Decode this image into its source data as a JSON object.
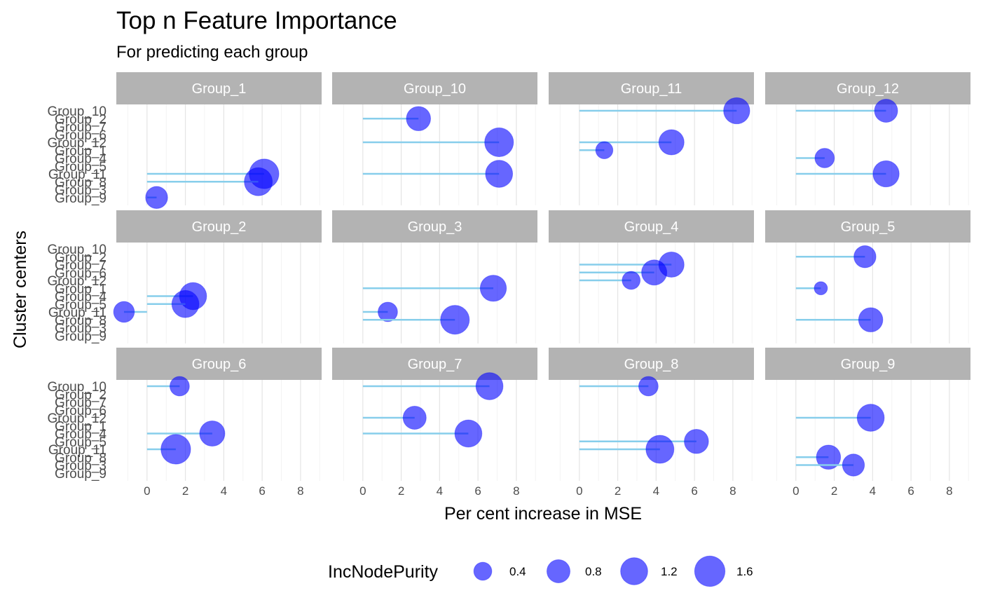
{
  "chart_data": {
    "type": "scatter",
    "title": "Top n Feature Importance",
    "subtitle": "For predicting each group",
    "xlabel": "Per cent increase in MSE",
    "ylabel": "Cluster centers",
    "xlim": [
      -1.6,
      9.1
    ],
    "x_ticks": [
      0,
      2,
      4,
      6,
      8
    ],
    "y_categories": [
      "Group_10",
      "Group_2",
      "Group_7",
      "Group_6",
      "Group_12",
      "Group_1",
      "Group_4",
      "Group_5",
      "Group_11",
      "Group_8",
      "Group_3",
      "Group_9"
    ],
    "grid": true,
    "size_legend": {
      "title": "IncNodePurity",
      "breaks": [
        0.4,
        0.8,
        1.2,
        1.6
      ],
      "labels": [
        "0.4",
        "0.8",
        "1.2",
        "1.6"
      ]
    },
    "colors": {
      "point": "#0000ff",
      "segment": "#87ceeb",
      "strip": "#b3b3b3",
      "grid": "#ebebeb"
    },
    "panels": [
      {
        "name": "Group_1",
        "points": [
          {
            "y": "Group_11",
            "x": 6.1,
            "size": 1.5
          },
          {
            "y": "Group_8",
            "x": 5.8,
            "size": 1.3
          },
          {
            "y": "Group_9",
            "x": 0.5,
            "size": 0.7
          }
        ]
      },
      {
        "name": "Group_10",
        "points": [
          {
            "y": "Group_2",
            "x": 2.9,
            "size": 0.9
          },
          {
            "y": "Group_12",
            "x": 7.1,
            "size": 1.4
          },
          {
            "y": "Group_11",
            "x": 7.1,
            "size": 1.2
          }
        ]
      },
      {
        "name": "Group_11",
        "points": [
          {
            "y": "Group_10",
            "x": 8.2,
            "size": 1.1
          },
          {
            "y": "Group_12",
            "x": 4.8,
            "size": 1.0
          },
          {
            "y": "Group_1",
            "x": 1.3,
            "size": 0.35
          }
        ]
      },
      {
        "name": "Group_12",
        "points": [
          {
            "y": "Group_10",
            "x": 4.7,
            "size": 0.8
          },
          {
            "y": "Group_4",
            "x": 1.5,
            "size": 0.5
          },
          {
            "y": "Group_11",
            "x": 4.7,
            "size": 1.1
          }
        ]
      },
      {
        "name": "Group_2",
        "points": [
          {
            "y": "Group_4",
            "x": 2.4,
            "size": 1.2
          },
          {
            "y": "Group_5",
            "x": 2.0,
            "size": 1.2
          },
          {
            "y": "Group_11",
            "x": -1.2,
            "size": 0.6
          }
        ]
      },
      {
        "name": "Group_3",
        "points": [
          {
            "y": "Group_1",
            "x": 6.8,
            "size": 1.1
          },
          {
            "y": "Group_11",
            "x": 1.3,
            "size": 0.5
          },
          {
            "y": "Group_8",
            "x": 4.8,
            "size": 1.4
          }
        ]
      },
      {
        "name": "Group_4",
        "points": [
          {
            "y": "Group_7",
            "x": 4.8,
            "size": 1.0
          },
          {
            "y": "Group_6",
            "x": 3.9,
            "size": 1.0
          },
          {
            "y": "Group_12",
            "x": 2.7,
            "size": 0.4
          }
        ]
      },
      {
        "name": "Group_5",
        "points": [
          {
            "y": "Group_2",
            "x": 3.6,
            "size": 0.7
          },
          {
            "y": "Group_1",
            "x": 1.3,
            "size": 0.15
          },
          {
            "y": "Group_8",
            "x": 3.9,
            "size": 0.9
          }
        ]
      },
      {
        "name": "Group_6",
        "points": [
          {
            "y": "Group_10",
            "x": 1.7,
            "size": 0.5
          },
          {
            "y": "Group_4",
            "x": 3.4,
            "size": 1.0
          },
          {
            "y": "Group_11",
            "x": 1.5,
            "size": 1.5
          }
        ]
      },
      {
        "name": "Group_7",
        "points": [
          {
            "y": "Group_10",
            "x": 6.6,
            "size": 1.2
          },
          {
            "y": "Group_12",
            "x": 2.7,
            "size": 0.8
          },
          {
            "y": "Group_4",
            "x": 5.5,
            "size": 1.2
          }
        ]
      },
      {
        "name": "Group_8",
        "points": [
          {
            "y": "Group_10",
            "x": 3.6,
            "size": 0.5
          },
          {
            "y": "Group_5",
            "x": 6.1,
            "size": 0.9
          },
          {
            "y": "Group_11",
            "x": 4.2,
            "size": 1.3
          }
        ]
      },
      {
        "name": "Group_9",
        "points": [
          {
            "y": "Group_12",
            "x": 3.9,
            "size": 1.2
          },
          {
            "y": "Group_8",
            "x": 1.7,
            "size": 0.9
          },
          {
            "y": "Group_3",
            "x": 3.0,
            "size": 0.7
          }
        ]
      }
    ]
  }
}
